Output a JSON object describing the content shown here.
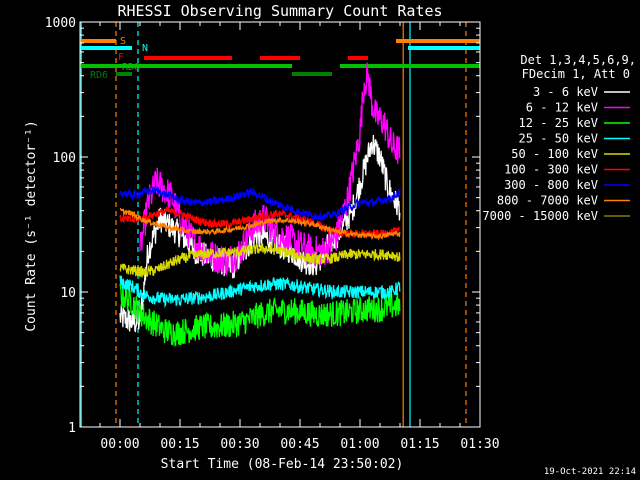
{
  "chart_data": {
    "type": "line",
    "title": "RHESSI Observing Summary Count Rates",
    "xlabel": "Start Time (08-Feb-14 23:50:02)",
    "ylabel": "Count Rate (s⁻¹ detector⁻¹)",
    "yscale": "log",
    "ylim": [
      1,
      1000
    ],
    "xlim_minutes": [
      -10,
      90
    ],
    "x_ticks": [
      {
        "label": "00:00",
        "minute": 0
      },
      {
        "label": "00:15",
        "minute": 15
      },
      {
        "label": "00:30",
        "minute": 30
      },
      {
        "label": "00:45",
        "minute": 45
      },
      {
        "label": "01:00",
        "minute": 60
      },
      {
        "label": "01:15",
        "minute": 75
      },
      {
        "label": "01:30",
        "minute": 90
      }
    ],
    "y_ticks": [
      {
        "label": "1",
        "value": 1
      },
      {
        "label": "10",
        "value": 10
      },
      {
        "label": "100",
        "value": 100
      },
      {
        "label": "1000",
        "value": 1000
      }
    ],
    "legend_header": [
      "Det 1,3,4,5,6,9,",
      "FDecim 1, Att 0"
    ],
    "legend_position": "right",
    "footer": "19-Oct-2021 22:14",
    "flags": [
      {
        "name": "S",
        "color": "#ff7f00",
        "segments": [
          [
            -10,
            -1
          ],
          [
            69,
            90
          ]
        ]
      },
      {
        "name": "N",
        "color": "#00ffff",
        "segments": [
          [
            -10,
            3
          ],
          [
            72,
            90
          ]
        ]
      },
      {
        "name": "F",
        "color": "#ff0000",
        "segments": [
          [
            6,
            28
          ],
          [
            35,
            45
          ],
          [
            57,
            62
          ]
        ]
      },
      {
        "name": "RD0",
        "color": "#00c000",
        "segments": [
          [
            -10,
            43
          ],
          [
            55,
            90
          ]
        ]
      },
      {
        "name": "RD6",
        "color": "#008000",
        "segments": [
          [
            -1,
            3
          ],
          [
            43,
            53
          ]
        ]
      }
    ],
    "vlines": [
      {
        "minute": -9.7,
        "color": "#00ffff",
        "dash": false
      },
      {
        "minute": -1,
        "color": "#ff7f00",
        "dash": true
      },
      {
        "minute": 4.5,
        "color": "#00ffff",
        "dash": true
      },
      {
        "minute": 70.8,
        "color": "#ff7f00",
        "dash": false
      },
      {
        "minute": 72.5,
        "color": "#00ffff",
        "dash": false
      },
      {
        "minute": 86.5,
        "color": "#ff7f00",
        "dash": true
      }
    ],
    "series": [
      {
        "name": "3 - 6 keV",
        "color": "#ffffff",
        "noise": 0.1,
        "points": [
          [
            0,
            6.5
          ],
          [
            3,
            6
          ],
          [
            5,
            6
          ],
          [
            7,
            20
          ],
          [
            10,
            35
          ],
          [
            13,
            30
          ],
          [
            16,
            25
          ],
          [
            19,
            20
          ],
          [
            22,
            18
          ],
          [
            25,
            17
          ],
          [
            28,
            15
          ],
          [
            31,
            20
          ],
          [
            34,
            27
          ],
          [
            37,
            25
          ],
          [
            40,
            22
          ],
          [
            43,
            20
          ],
          [
            46,
            17
          ],
          [
            49,
            16
          ],
          [
            52,
            22
          ],
          [
            55,
            28
          ],
          [
            58,
            40
          ],
          [
            61,
            80
          ],
          [
            63,
            130
          ],
          [
            65,
            100
          ],
          [
            67,
            60
          ],
          [
            69,
            45
          ],
          [
            70,
            42
          ]
        ]
      },
      {
        "name": "6 - 12 keV",
        "color": "#ff00ff",
        "noise": 0.12,
        "points": [
          [
            5,
            20
          ],
          [
            7,
            45
          ],
          [
            9,
            65
          ],
          [
            11,
            58
          ],
          [
            13,
            50
          ],
          [
            15,
            35
          ],
          [
            18,
            25
          ],
          [
            21,
            20
          ],
          [
            24,
            18
          ],
          [
            27,
            17
          ],
          [
            30,
            20
          ],
          [
            33,
            30
          ],
          [
            36,
            35
          ],
          [
            39,
            27
          ],
          [
            42,
            25
          ],
          [
            45,
            22
          ],
          [
            48,
            20
          ],
          [
            51,
            20
          ],
          [
            54,
            25
          ],
          [
            57,
            50
          ],
          [
            60,
            150
          ],
          [
            61,
            350
          ],
          [
            62,
            400
          ],
          [
            63,
            250
          ],
          [
            64,
            200
          ],
          [
            66,
            180
          ],
          [
            68,
            120
          ],
          [
            70,
            110
          ]
        ]
      },
      {
        "name": "12 - 25 keV",
        "color": "#00ff00",
        "noise": 0.1,
        "points": [
          [
            0,
            9.5
          ],
          [
            3,
            8.5
          ],
          [
            5,
            7
          ],
          [
            8,
            6
          ],
          [
            11,
            5.2
          ],
          [
            14,
            5
          ],
          [
            17,
            5.2
          ],
          [
            20,
            5.5
          ],
          [
            23,
            5.5
          ],
          [
            26,
            5.6
          ],
          [
            29,
            5.8
          ],
          [
            32,
            6.2
          ],
          [
            35,
            6.8
          ],
          [
            38,
            7.2
          ],
          [
            41,
            7.3
          ],
          [
            44,
            7.2
          ],
          [
            47,
            7
          ],
          [
            50,
            6.8
          ],
          [
            53,
            6.9
          ],
          [
            56,
            7
          ],
          [
            59,
            7.2
          ],
          [
            62,
            7.5
          ],
          [
            65,
            7.5
          ],
          [
            68,
            7.8
          ],
          [
            70,
            8
          ]
        ]
      },
      {
        "name": "25 - 50 keV",
        "color": "#00ffff",
        "noise": 0.05,
        "points": [
          [
            0,
            12
          ],
          [
            3,
            11
          ],
          [
            6,
            9.5
          ],
          [
            9,
            9
          ],
          [
            12,
            8.8
          ],
          [
            15,
            8.8
          ],
          [
            18,
            9
          ],
          [
            21,
            9.2
          ],
          [
            24,
            9.5
          ],
          [
            27,
            10
          ],
          [
            30,
            10.5
          ],
          [
            33,
            11
          ],
          [
            36,
            11.3
          ],
          [
            39,
            11.5
          ],
          [
            42,
            11.4
          ],
          [
            45,
            11
          ],
          [
            48,
            10.5
          ],
          [
            51,
            10.3
          ],
          [
            54,
            10
          ],
          [
            57,
            10
          ],
          [
            60,
            10
          ],
          [
            63,
            10
          ],
          [
            66,
            10
          ],
          [
            68,
            10
          ],
          [
            70,
            11
          ]
        ]
      },
      {
        "name": "50 - 100 keV",
        "color": "#d8d800",
        "noise": 0.04,
        "points": [
          [
            0,
            15
          ],
          [
            3,
            14.5
          ],
          [
            6,
            14
          ],
          [
            9,
            14.5
          ],
          [
            12,
            16
          ],
          [
            15,
            17.5
          ],
          [
            18,
            18.5
          ],
          [
            21,
            19
          ],
          [
            24,
            19.5
          ],
          [
            27,
            19.5
          ],
          [
            30,
            20
          ],
          [
            33,
            20.5
          ],
          [
            36,
            21
          ],
          [
            39,
            20.5
          ],
          [
            42,
            19.5
          ],
          [
            45,
            18.5
          ],
          [
            48,
            17.5
          ],
          [
            51,
            17.5
          ],
          [
            54,
            18
          ],
          [
            57,
            19
          ],
          [
            60,
            19
          ],
          [
            63,
            19
          ],
          [
            66,
            19
          ],
          [
            68,
            19
          ],
          [
            70,
            18
          ]
        ]
      },
      {
        "name": "100 - 300 keV",
        "color": "#ff0000",
        "noise": 0.03,
        "points": [
          [
            0,
            35
          ],
          [
            3,
            34
          ],
          [
            6,
            35
          ],
          [
            9,
            38
          ],
          [
            12,
            40
          ],
          [
            15,
            38
          ],
          [
            18,
            35
          ],
          [
            21,
            33
          ],
          [
            24,
            32
          ],
          [
            27,
            32
          ],
          [
            30,
            33
          ],
          [
            33,
            35
          ],
          [
            36,
            37
          ],
          [
            39,
            38
          ],
          [
            42,
            37
          ],
          [
            45,
            35
          ],
          [
            48,
            33
          ],
          [
            51,
            30
          ],
          [
            54,
            28
          ],
          [
            57,
            27
          ],
          [
            60,
            27
          ],
          [
            63,
            27
          ],
          [
            66,
            27
          ],
          [
            68,
            28
          ],
          [
            70,
            28
          ]
        ]
      },
      {
        "name": "300 - 800 keV",
        "color": "#0000ff",
        "noise": 0.03,
        "points": [
          [
            0,
            55
          ],
          [
            3,
            52
          ],
          [
            6,
            55
          ],
          [
            9,
            57
          ],
          [
            12,
            52
          ],
          [
            15,
            48
          ],
          [
            18,
            46
          ],
          [
            21,
            46
          ],
          [
            24,
            47
          ],
          [
            27,
            49
          ],
          [
            30,
            52
          ],
          [
            33,
            55
          ],
          [
            36,
            50
          ],
          [
            39,
            45
          ],
          [
            42,
            42
          ],
          [
            45,
            39
          ],
          [
            48,
            37
          ],
          [
            51,
            36
          ],
          [
            54,
            38
          ],
          [
            57,
            42
          ],
          [
            60,
            46
          ],
          [
            63,
            46
          ],
          [
            66,
            48
          ],
          [
            68,
            50
          ],
          [
            70,
            55
          ]
        ]
      },
      {
        "name": "800 - 7000 keV",
        "color": "#ff7f00",
        "noise": 0.02,
        "points": [
          [
            0,
            40
          ],
          [
            3,
            38
          ],
          [
            6,
            34
          ],
          [
            9,
            32
          ],
          [
            12,
            30
          ],
          [
            15,
            29
          ],
          [
            18,
            28
          ],
          [
            21,
            28
          ],
          [
            24,
            28
          ],
          [
            27,
            29
          ],
          [
            30,
            30
          ],
          [
            33,
            31
          ],
          [
            36,
            33
          ],
          [
            39,
            34
          ],
          [
            42,
            34
          ],
          [
            45,
            33
          ],
          [
            48,
            32
          ],
          [
            51,
            30
          ],
          [
            54,
            28
          ],
          [
            57,
            27
          ],
          [
            60,
            26.5
          ],
          [
            63,
            26
          ],
          [
            66,
            26
          ],
          [
            68,
            27
          ],
          [
            70,
            27
          ]
        ]
      },
      {
        "name": "7000 - 15000 keV",
        "color": "#808000",
        "noise": 0,
        "points": []
      }
    ]
  }
}
